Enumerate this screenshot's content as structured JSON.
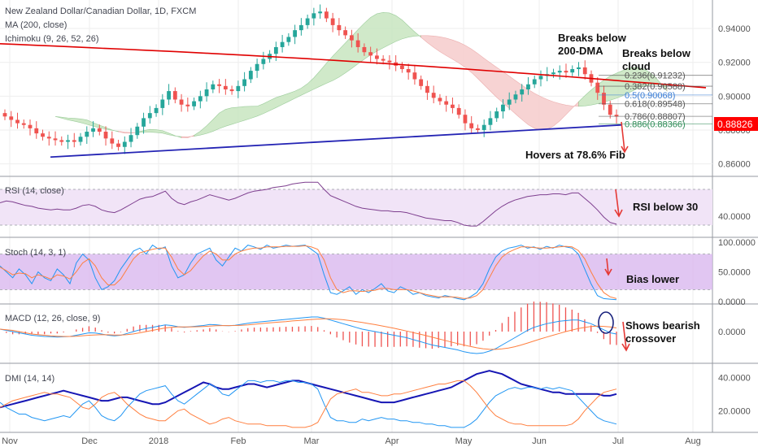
{
  "panels": {
    "price": {
      "title": "New Zealand Dollar/Canadian Dollar, 1D, FXCM",
      "indicators": [
        "MA (200, close)",
        "Ichimoku (9, 26, 52, 26)"
      ],
      "last_price": "0.88826",
      "last_price_color": "#ff0000"
    },
    "rsi": {
      "title": "RSI (14, close)"
    },
    "stoch": {
      "title": "Stoch (14, 3, 1)"
    },
    "macd": {
      "title": "MACD (12, 26, close, 9)"
    },
    "dmi": {
      "title": "DMI (14, 14)"
    }
  },
  "annotations": {
    "breaks_200dma": [
      "Breaks below",
      "200-DMA"
    ],
    "breaks_cloud": [
      "Breaks below",
      "cloud"
    ],
    "hovers": "Hovers at 78.6% Fib",
    "rsi": "RSI below 30",
    "stoch": "Bias lower",
    "macd": [
      "Shows bearish",
      "crossover"
    ]
  },
  "fib_levels": [
    {
      "label": "0.236(0.91232)",
      "value": 0.91232,
      "color": "#555555"
    },
    {
      "label": "0.382(0.90588)",
      "value": 0.90588,
      "color": "#555555"
    },
    {
      "label": "0.5(0.90068)",
      "value": 0.90068,
      "color": "#3d7fd6"
    },
    {
      "label": "0.618(0.89548)",
      "value": 0.89548,
      "color": "#555555"
    },
    {
      "label": "0.786(0.88807)",
      "value": 0.88807,
      "color": "#555555"
    },
    {
      "label": "0.886(0.88366)",
      "value": 0.88366,
      "color": "#2e8b57"
    }
  ],
  "colors": {
    "up": "#26a69a",
    "down": "#ef5350",
    "ma": "#e00000",
    "trendline": "#2424b4",
    "cloud_green": "#c8e6c0",
    "cloud_red": "#f6cccc",
    "rsi_line": "#7e3f8f",
    "rsi_band": "#f1e4f7",
    "stoch_band": "#d9b8ef",
    "k_line": "#2196f3",
    "d_line": "#ff7f3f",
    "macd_line": "#2196f3",
    "signal_line": "#ff7f3f",
    "hist": "#ef5350",
    "adx": "#1616b4",
    "plus_di": "#2196f3",
    "minus_di": "#ff7f3f"
  },
  "chart_data": [
    {
      "type": "candlestick",
      "title": "New Zealand Dollar/Canadian Dollar, 1D, FXCM",
      "x": [
        "Nov",
        "Dec",
        "2018",
        "Feb",
        "Mar",
        "Apr",
        "May",
        "Jun",
        "Jul",
        "Aug"
      ],
      "ylim": [
        0.855,
        0.953
      ],
      "yticks": [
        "0.86000",
        "0.88000",
        "0.90000",
        "0.92000",
        "0.94000"
      ],
      "closes": [
        0.888,
        0.886,
        0.884,
        0.883,
        0.881,
        0.878,
        0.876,
        0.875,
        0.874,
        0.873,
        0.874,
        0.873,
        0.876,
        0.879,
        0.881,
        0.879,
        0.875,
        0.872,
        0.87,
        0.873,
        0.877,
        0.882,
        0.887,
        0.89,
        0.893,
        0.898,
        0.903,
        0.898,
        0.895,
        0.894,
        0.897,
        0.9,
        0.904,
        0.907,
        0.906,
        0.904,
        0.903,
        0.906,
        0.91,
        0.915,
        0.919,
        0.922,
        0.925,
        0.929,
        0.932,
        0.935,
        0.939,
        0.942,
        0.946,
        0.949,
        0.95,
        0.946,
        0.942,
        0.939,
        0.936,
        0.933,
        0.929,
        0.926,
        0.924,
        0.922,
        0.921,
        0.92,
        0.918,
        0.916,
        0.914,
        0.91,
        0.906,
        0.902,
        0.899,
        0.897,
        0.895,
        0.893,
        0.889,
        0.884,
        0.881,
        0.88,
        0.883,
        0.887,
        0.891,
        0.895,
        0.898,
        0.901,
        0.904,
        0.907,
        0.91,
        0.912,
        0.913,
        0.914,
        0.915,
        0.914,
        0.916,
        0.917,
        0.913,
        0.908,
        0.902,
        0.895,
        0.889,
        0.888
      ],
      "ma200": {
        "start": 0.931,
        "end": 0.905
      },
      "trendline": {
        "start": 0.864,
        "end": 0.883
      },
      "last_price": 0.88826,
      "annotations": [
        "Breaks below 200-DMA",
        "Breaks below cloud",
        "Hovers at 78.6% Fib"
      ]
    },
    {
      "type": "line",
      "title": "RSI (14, close)",
      "yticks": [
        "40.0000"
      ],
      "ylim": [
        20,
        80
      ],
      "values": [
        55,
        57,
        56,
        54,
        52,
        51,
        49,
        48,
        47,
        48,
        47,
        47,
        49,
        52,
        53,
        51,
        47,
        45,
        44,
        47,
        51,
        55,
        59,
        61,
        62,
        65,
        68,
        60,
        55,
        53,
        56,
        58,
        61,
        64,
        62,
        60,
        58,
        60,
        63,
        66,
        68,
        69,
        70,
        72,
        73,
        74,
        76,
        77,
        78,
        78,
        78,
        70,
        63,
        60,
        57,
        54,
        51,
        49,
        48,
        47,
        46,
        46,
        45,
        45,
        44,
        42,
        40,
        38,
        37,
        36,
        35,
        35,
        33,
        30,
        29,
        29,
        34,
        40,
        46,
        51,
        55,
        58,
        60,
        62,
        63,
        64,
        64,
        65,
        65,
        64,
        66,
        66,
        60,
        54,
        47,
        39,
        33,
        31
      ],
      "band": [
        30,
        70
      ],
      "annotations": [
        "RSI below 30"
      ]
    },
    {
      "type": "line",
      "title": "Stoch (14, 3, 1)",
      "yticks": [
        "100.0000",
        "50.0000",
        "0.0000"
      ],
      "ylim": [
        0,
        100
      ],
      "series": [
        {
          "values": [
            60,
            50,
            40,
            55,
            45,
            30,
            50,
            40,
            35,
            55,
            45,
            30,
            65,
            80,
            70,
            40,
            20,
            25,
            35,
            55,
            70,
            85,
            90,
            80,
            95,
            88,
            92,
            60,
            40,
            45,
            65,
            80,
            85,
            90,
            70,
            60,
            75,
            90,
            85,
            95,
            92,
            88,
            95,
            90,
            92,
            95,
            93,
            94,
            95,
            88,
            80,
            45,
            15,
            12,
            18,
            25,
            12,
            20,
            15,
            22,
            30,
            18,
            15,
            25,
            20,
            12,
            15,
            10,
            8,
            6,
            10,
            8,
            5,
            3,
            8,
            15,
            30,
            55,
            75,
            85,
            90,
            92,
            95,
            90,
            92,
            88,
            93,
            90,
            95,
            92,
            90,
            80,
            55,
            30,
            10,
            5,
            4,
            3
          ]
        },
        {
          "values": [
            58,
            52,
            45,
            48,
            47,
            40,
            45,
            42,
            38,
            45,
            43,
            38,
            50,
            65,
            72,
            60,
            40,
            28,
            28,
            38,
            55,
            72,
            82,
            85,
            88,
            90,
            90,
            75,
            55,
            45,
            52,
            65,
            77,
            85,
            80,
            70,
            70,
            80,
            85,
            88,
            90,
            90,
            92,
            92,
            92,
            93,
            93,
            93,
            94,
            92,
            88,
            70,
            40,
            20,
            15,
            18,
            18,
            17,
            18,
            19,
            22,
            22,
            20,
            20,
            20,
            18,
            15,
            12,
            10,
            8,
            8,
            8,
            7,
            5,
            6,
            10,
            20,
            40,
            60,
            75,
            83,
            88,
            92,
            92,
            91,
            90,
            90,
            91,
            92,
            93,
            92,
            86,
            72,
            50,
            30,
            15,
            8,
            5
          ]
        }
      ],
      "band": [
        20,
        80
      ],
      "annotations": [
        "Bias lower"
      ]
    },
    {
      "type": "line",
      "title": "MACD (12, 26, close, 9)",
      "yticks": [
        "0.0000"
      ],
      "series": [
        {
          "values": [
            0.002,
            0.001,
            0.0,
            -0.001,
            -0.002,
            -0.003,
            -0.0035,
            -0.004,
            -0.0042,
            -0.0045,
            -0.0043,
            -0.004,
            -0.003,
            -0.002,
            -0.001,
            -0.0012,
            -0.002,
            -0.003,
            -0.0035,
            -0.003,
            -0.0015,
            0.0,
            0.0015,
            0.0025,
            0.0035,
            0.0045,
            0.0055,
            0.005,
            0.004,
            0.0035,
            0.004,
            0.0045,
            0.005,
            0.0058,
            0.0056,
            0.005,
            0.0048,
            0.0052,
            0.006,
            0.0068,
            0.0075,
            0.008,
            0.0085,
            0.009,
            0.0095,
            0.01,
            0.0105,
            0.011,
            0.0115,
            0.012,
            0.012,
            0.011,
            0.0095,
            0.008,
            0.0065,
            0.005,
            0.0035,
            0.002,
            0.001,
            0.0,
            -0.001,
            -0.002,
            -0.003,
            -0.004,
            -0.005,
            -0.0065,
            -0.008,
            -0.0095,
            -0.011,
            -0.012,
            -0.013,
            -0.014,
            -0.015,
            -0.0165,
            -0.0175,
            -0.018,
            -0.0175,
            -0.016,
            -0.014,
            -0.011,
            -0.008,
            -0.005,
            -0.002,
            0.001,
            0.0035,
            0.005,
            0.0065,
            0.0075,
            0.0085,
            0.009,
            0.0095,
            0.0095,
            0.008,
            0.0065,
            0.004,
            0.0015,
            -0.001,
            -0.002
          ]
        },
        {
          "values": [
            0.002,
            0.0015,
            0.001,
            0.0,
            -0.001,
            -0.002,
            -0.0025,
            -0.003,
            -0.0035,
            -0.0038,
            -0.004,
            -0.004,
            -0.0038,
            -0.0034,
            -0.003,
            -0.0027,
            -0.0025,
            -0.0026,
            -0.0028,
            -0.0028,
            -0.0025,
            -0.0019,
            -0.001,
            0.0,
            0.001,
            0.002,
            0.003,
            0.0036,
            0.0038,
            0.0038,
            0.0038,
            0.004,
            0.0042,
            0.0045,
            0.0048,
            0.0049,
            0.0049,
            0.005,
            0.0052,
            0.0055,
            0.006,
            0.0065,
            0.007,
            0.0074,
            0.0078,
            0.0082,
            0.0087,
            0.0091,
            0.0095,
            0.0099,
            0.0103,
            0.0105,
            0.0105,
            0.0102,
            0.0097,
            0.0091,
            0.0083,
            0.0075,
            0.0066,
            0.0057,
            0.0047,
            0.0037,
            0.0027,
            0.0016,
            0.0005,
            -0.0008,
            -0.002,
            -0.0033,
            -0.0046,
            -0.0059,
            -0.0072,
            -0.0085,
            -0.0098,
            -0.011,
            -0.0122,
            -0.0133,
            -0.0141,
            -0.0145,
            -0.0146,
            -0.0142,
            -0.0135,
            -0.0124,
            -0.011,
            -0.0094,
            -0.0077,
            -0.0061,
            -0.0045,
            -0.003,
            -0.0015,
            0.0,
            0.0013,
            0.0025,
            0.0034,
            0.0042,
            0.0045,
            0.0043,
            0.0038,
            0.003
          ]
        }
      ],
      "annotations": [
        "Shows bearish crossover"
      ]
    },
    {
      "type": "line",
      "title": "DMI (14, 14)",
      "yticks": [
        "40.0000",
        "20.0000"
      ],
      "ylim": [
        8,
        46
      ],
      "series": [
        {
          "values": [
            22,
            23,
            24,
            25,
            26,
            27,
            28,
            29,
            30,
            31,
            32,
            31,
            30,
            29,
            28,
            27,
            26,
            26,
            27,
            28,
            28,
            27,
            26,
            25,
            24,
            24,
            25,
            27,
            29,
            31,
            33,
            35,
            37,
            36,
            34,
            33,
            33,
            34,
            35,
            36,
            36,
            35,
            34,
            35,
            36,
            37,
            38,
            38,
            37,
            36,
            35,
            34,
            33,
            32,
            31,
            30,
            29,
            28,
            27,
            26,
            25,
            25,
            25,
            26,
            27,
            28,
            29,
            30,
            31,
            32,
            33,
            34,
            36,
            38,
            40,
            42,
            43,
            44,
            43,
            42,
            40,
            38,
            36,
            35,
            34,
            33,
            32,
            31,
            31,
            30,
            30,
            30,
            30,
            30,
            30,
            29,
            29,
            30
          ]
        },
        {
          "values": [
            25,
            22,
            20,
            18,
            18,
            16,
            15,
            14,
            15,
            16,
            17,
            16,
            20,
            24,
            26,
            22,
            17,
            15,
            14,
            17,
            22,
            26,
            30,
            32,
            33,
            34,
            35,
            30,
            26,
            24,
            27,
            30,
            33,
            36,
            34,
            30,
            29,
            32,
            35,
            38,
            38,
            37,
            38,
            38,
            37,
            38,
            38,
            37,
            37,
            36,
            33,
            24,
            16,
            14,
            14,
            13,
            13,
            15,
            14,
            15,
            16,
            15,
            15,
            14,
            14,
            13,
            13,
            12,
            12,
            11,
            11,
            10,
            10,
            10,
            12,
            15,
            20,
            25,
            29,
            31,
            33,
            34,
            33,
            34,
            34,
            33,
            34,
            33,
            34,
            33,
            32,
            28,
            24,
            20,
            16,
            14,
            13,
            12
          ]
        },
        {
          "values": [
            22,
            24,
            26,
            27,
            28,
            29,
            30,
            31,
            30,
            30,
            29,
            28,
            25,
            22,
            21,
            24,
            28,
            30,
            31,
            28,
            24,
            21,
            18,
            16,
            15,
            14,
            14,
            17,
            20,
            21,
            18,
            16,
            14,
            12,
            13,
            15,
            16,
            14,
            13,
            12,
            12,
            12,
            11,
            11,
            11,
            11,
            10,
            10,
            10,
            11,
            13,
            20,
            27,
            30,
            31,
            32,
            33,
            31,
            31,
            30,
            29,
            29,
            30,
            30,
            31,
            32,
            33,
            34,
            35,
            36,
            36,
            37,
            38,
            38,
            35,
            31,
            26,
            21,
            17,
            15,
            13,
            12,
            12,
            11,
            11,
            11,
            11,
            11,
            11,
            11,
            12,
            15,
            20,
            24,
            28,
            31,
            32,
            33
          ]
        }
      ]
    }
  ]
}
